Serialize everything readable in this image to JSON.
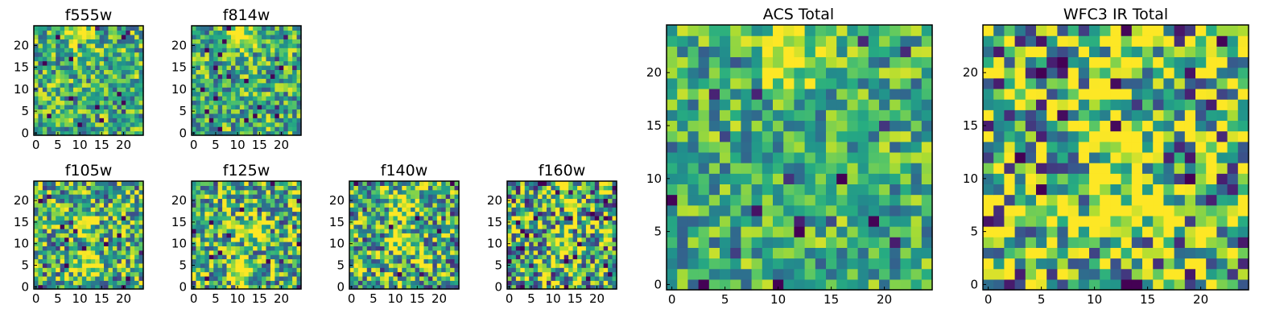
{
  "figure": {
    "colormap": "viridis",
    "background": "#ffffff"
  },
  "chart_data": [
    {
      "type": "heatmap",
      "title": "f555w",
      "grid": [
        25,
        25
      ],
      "xlim": [
        0,
        24
      ],
      "ylim": [
        0,
        24
      ],
      "xticks": [
        "0",
        "5",
        "10",
        "15",
        "20"
      ],
      "yticks": [
        "0",
        "5",
        "10",
        "15",
        "20"
      ],
      "bright_spots": [
        [
          10,
          23
        ]
      ],
      "contrast": 0.45,
      "seed": 11
    },
    {
      "type": "heatmap",
      "title": "f814w",
      "grid": [
        25,
        25
      ],
      "xlim": [
        0,
        24
      ],
      "ylim": [
        0,
        24
      ],
      "xticks": [
        "0",
        "5",
        "10",
        "15",
        "20"
      ],
      "yticks": [
        "0",
        "5",
        "10",
        "15",
        "20"
      ],
      "bright_spots": [
        [
          11,
          22
        ]
      ],
      "contrast": 0.45,
      "seed": 23
    },
    {
      "type": "heatmap",
      "title": "f105w",
      "grid": [
        25,
        25
      ],
      "xlim": [
        0,
        24
      ],
      "ylim": [
        0,
        24
      ],
      "xticks": [
        "0",
        "5",
        "10",
        "15",
        "20"
      ],
      "yticks": [
        "0",
        "5",
        "10",
        "15",
        "20"
      ],
      "bright_spots": [
        [
          12,
          5
        ],
        [
          11,
          15
        ]
      ],
      "contrast": 0.55,
      "seed": 37
    },
    {
      "type": "heatmap",
      "title": "f125w",
      "grid": [
        25,
        25
      ],
      "xlim": [
        0,
        24
      ],
      "ylim": [
        0,
        24
      ],
      "xticks": [
        "0",
        "5",
        "10",
        "15",
        "20"
      ],
      "yticks": [
        "0",
        "5",
        "10",
        "15",
        "20"
      ],
      "bright_spots": [
        [
          11,
          4
        ],
        [
          13,
          14
        ]
      ],
      "contrast": 0.55,
      "seed": 41
    },
    {
      "type": "heatmap",
      "title": "f140w",
      "grid": [
        25,
        25
      ],
      "xlim": [
        0,
        24
      ],
      "ylim": [
        0,
        24
      ],
      "xticks": [
        "0",
        "5",
        "10",
        "15",
        "20"
      ],
      "yticks": [
        "0",
        "5",
        "10",
        "15",
        "20"
      ],
      "bright_spots": [
        [
          12,
          10
        ],
        [
          12,
          20
        ]
      ],
      "contrast": 0.6,
      "seed": 53
    },
    {
      "type": "heatmap",
      "title": "f160w",
      "grid": [
        25,
        25
      ],
      "xlim": [
        0,
        24
      ],
      "ylim": [
        0,
        24
      ],
      "xticks": [
        "0",
        "5",
        "10",
        "15",
        "20"
      ],
      "yticks": [
        "0",
        "5",
        "10",
        "15",
        "20"
      ],
      "bright_spots": [
        [
          13,
          22
        ],
        [
          12,
          10
        ]
      ],
      "contrast": 0.65,
      "seed": 67
    },
    {
      "type": "heatmap",
      "title": "ACS Total",
      "grid": [
        25,
        25
      ],
      "xlim": [
        0,
        24
      ],
      "ylim": [
        0,
        24
      ],
      "xticks": [
        "0",
        "5",
        "10",
        "15",
        "20"
      ],
      "yticks": [
        "0",
        "5",
        "10",
        "15",
        "20"
      ],
      "bright_spots": [
        [
          11,
          22
        ]
      ],
      "contrast": 0.4,
      "seed": 79
    },
    {
      "type": "heatmap",
      "title": "WFC3 IR Total",
      "grid": [
        25,
        25
      ],
      "xlim": [
        0,
        24
      ],
      "ylim": [
        0,
        24
      ],
      "xticks": [
        "0",
        "5",
        "10",
        "15",
        "20"
      ],
      "yticks": [
        "0",
        "5",
        "10",
        "15",
        "20"
      ],
      "bright_spots": [
        [
          12,
          22
        ],
        [
          12,
          12
        ],
        [
          12,
          6
        ]
      ],
      "contrast": 0.7,
      "seed": 97
    }
  ]
}
